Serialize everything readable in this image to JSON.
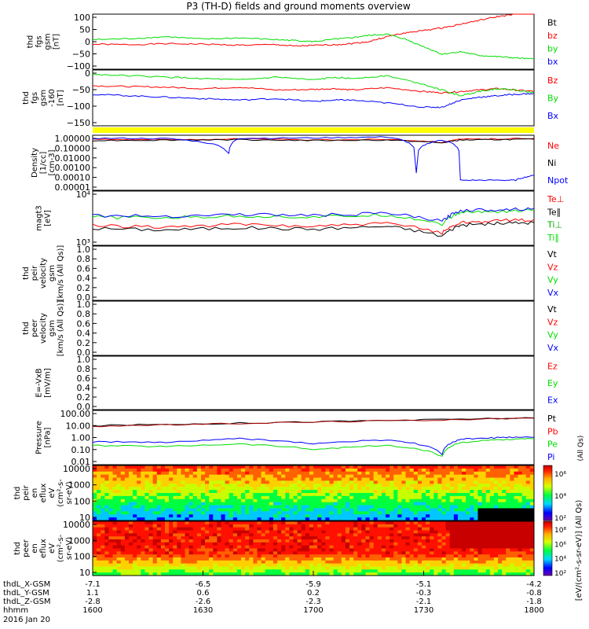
{
  "title": "P3 (TH-D) fields and ground moments overview",
  "panels": [
    {
      "id": "fgs_gsm",
      "ylabel": [
        "thd",
        "fgs",
        "gsm",
        "[nT]"
      ],
      "ticks": [
        "100",
        "50",
        "0",
        "−50",
        "−100"
      ],
      "ylim": [
        -110,
        110
      ],
      "legend": [
        {
          "text": "Bt",
          "color": "#000000"
        },
        {
          "text": "bz",
          "color": "#ff0000"
        },
        {
          "text": "by",
          "color": "#00dd00"
        },
        {
          "text": "bx",
          "color": "#0000ff"
        }
      ]
    },
    {
      "id": "fgs_gsm_sm",
      "ylabel": [
        "thd",
        "fgs",
        "gsm",
        "-160",
        "[nT]"
      ],
      "ticks": [
        "0",
        "−50",
        "−100",
        "−150"
      ],
      "ylim": [
        -175,
        20
      ],
      "legend": [
        {
          "text": "Bz",
          "color": "#ff0000"
        },
        {
          "text": "By",
          "color": "#00dd00"
        },
        {
          "text": "Bx",
          "color": "#0000ff"
        }
      ]
    },
    {
      "id": "density",
      "ylabel": [
        "Density",
        "[1/cc]",
        "[cm-3]"
      ],
      "ticks": [
        "1.00000",
        "0.10000",
        "0.01000",
        "0.00100",
        "0.00010",
        "0.00001"
      ],
      "legend": [
        {
          "text": "Ne",
          "color": "#ff0000"
        },
        {
          "text": "Ni",
          "color": "#000000"
        },
        {
          "text": "Npot",
          "color": "#0000ff"
        }
      ]
    },
    {
      "id": "temperature",
      "ylabel": [
        "magt3",
        "[eV]"
      ],
      "ticks": [
        "10⁴",
        "10³"
      ],
      "legend": [
        {
          "text": "Te⊥",
          "color": "#ff0000"
        },
        {
          "text": "Te∥",
          "color": "#000000"
        },
        {
          "text": "Ti⊥",
          "color": "#00aa00"
        },
        {
          "text": "Ti∥",
          "color": "#00dd00"
        }
      ]
    },
    {
      "id": "peir_velocity",
      "ylabel": [
        "thd",
        "peir",
        "velocity",
        "gsm",
        "[km/s (All Qs)]"
      ],
      "ticks": [
        "1.0",
        "0.8",
        "0.6",
        "0.4",
        "0.2",
        "0.0"
      ],
      "legend": [
        {
          "text": "Vt",
          "color": "#000000"
        },
        {
          "text": "Vz",
          "color": "#ff0000"
        },
        {
          "text": "Vy",
          "color": "#00dd00"
        },
        {
          "text": "Vx",
          "color": "#0000ff"
        }
      ]
    },
    {
      "id": "peer_velocity",
      "ylabel": [
        "thd",
        "peer",
        "velocity",
        "gsm",
        "[km/s (All Qs)]"
      ],
      "ticks": [
        "1.0",
        "0.8",
        "0.6",
        "0.4",
        "0.2",
        "0.0"
      ],
      "legend": [
        {
          "text": "Vt",
          "color": "#000000"
        },
        {
          "text": "Vz",
          "color": "#ff0000"
        },
        {
          "text": "Vy",
          "color": "#00dd00"
        },
        {
          "text": "Vx",
          "color": "#0000ff"
        }
      ]
    },
    {
      "id": "efield",
      "ylabel": [
        "E=-VxB",
        "[mV/m]"
      ],
      "ticks": [
        "1.0",
        "0.8",
        "0.6",
        "0.4",
        "0.2",
        "0.0"
      ],
      "legend": [
        {
          "text": "Ez",
          "color": "#ff0000"
        },
        {
          "text": "Ey",
          "color": "#00dd00"
        },
        {
          "text": "Ex",
          "color": "#0000ff"
        }
      ]
    },
    {
      "id": "pressure",
      "ylabel": [
        "Pressure",
        "[nPa]"
      ],
      "ticks": [
        "100.00",
        "10.00",
        "1.00",
        "0.10",
        "0.01"
      ],
      "legend": [
        {
          "text": "Pt",
          "color": "#000000"
        },
        {
          "text": "Pb",
          "color": "#ff0000"
        },
        {
          "text": "Pe",
          "color": "#00dd00"
        },
        {
          "text": "Pi",
          "color": "#0000ff"
        }
      ],
      "side_label": "(All Qs)"
    },
    {
      "id": "peir_eflux",
      "ylabel": [
        "thd",
        "peir",
        "en",
        "eflux",
        "eV",
        "(cm²-s-",
        "sr-eV)"
      ],
      "ticks": [
        "10000",
        "1000",
        "100",
        "10"
      ],
      "colorbar_ticks": [
        "10⁶",
        "10⁴",
        "10²"
      ]
    },
    {
      "id": "peer_eflux",
      "ylabel": [
        "thd",
        "peer",
        "en",
        "eflux",
        "eV",
        "(cm²-s-",
        "sr-eV)"
      ],
      "ticks": [
        "10000",
        "1000",
        "100",
        "10"
      ],
      "colorbar_ticks": [
        "10⁸",
        "10⁶",
        "10⁴",
        "10²"
      ]
    }
  ],
  "colorbar_label": "[eV/(cm²-s-sr-eV)] (All Qs)",
  "xaxis": {
    "rows": [
      {
        "label": "thdL_X-GSM",
        "values": [
          "-7.1",
          "-6.5",
          "-5.9",
          "-5.1",
          "-4.2"
        ]
      },
      {
        "label": "thdL_Y-GSM",
        "values": [
          "1.1",
          "0.6",
          "0.2",
          "-0.3",
          "-0.8"
        ]
      },
      {
        "label": "thdL_Z-GSM",
        "values": [
          "-2.8",
          "-2.6",
          "-2.3",
          "-2.1",
          "-1.8"
        ]
      },
      {
        "label": "hhmm",
        "values": [
          "1600",
          "1630",
          "1700",
          "1730",
          "1800"
        ]
      }
    ],
    "date": "2016 Jan 20"
  },
  "colors": {
    "red": "#ff0000",
    "green": "#00dd00",
    "blue": "#0000ff",
    "yellow_bar": "#ffff00"
  },
  "chart_data": [
    {
      "type": "line",
      "title": "thd fgs gsm [nT]",
      "x_range": [
        "16:00",
        "18:00"
      ],
      "ylim": [
        -110,
        110
      ],
      "series": [
        {
          "name": "bz",
          "x": [
            0,
            10,
            20,
            30,
            40,
            50,
            55,
            60,
            66,
            70,
            75,
            80,
            85,
            90,
            95,
            100,
            105,
            110,
            115,
            120
          ],
          "values": [
            -10,
            -12,
            -8,
            -10,
            -14,
            -12,
            -18,
            -15,
            -12,
            -8,
            0,
            20,
            35,
            45,
            55,
            70,
            85,
            100,
            110,
            115
          ]
        },
        {
          "name": "by",
          "x": [
            0,
            10,
            20,
            30,
            40,
            50,
            55,
            60,
            66,
            70,
            75,
            80,
            85,
            90,
            95,
            100,
            105,
            110,
            115,
            120
          ],
          "values": [
            8,
            12,
            20,
            10,
            15,
            8,
            5,
            0,
            10,
            15,
            25,
            30,
            10,
            -20,
            -50,
            -40,
            -55,
            -60,
            -65,
            -70
          ]
        }
      ]
    },
    {
      "type": "line",
      "title": "thd fgs gsm -160 [nT]",
      "x_range": [
        "16:00",
        "18:00"
      ],
      "ylim": [
        -175,
        20
      ],
      "series": [
        {
          "name": "Bz",
          "x": [
            0,
            10,
            20,
            30,
            40,
            50,
            60,
            66,
            70,
            80,
            90,
            95,
            100,
            105,
            110,
            115,
            120
          ],
          "values": [
            -35,
            -38,
            -40,
            -45,
            -40,
            -50,
            -48,
            -45,
            -50,
            -42,
            -55,
            -60,
            -55,
            -50,
            -45,
            -50,
            -55
          ]
        },
        {
          "name": "By",
          "x": [
            0,
            10,
            20,
            30,
            40,
            50,
            60,
            66,
            70,
            80,
            90,
            95,
            100,
            105,
            110,
            115,
            120
          ],
          "values": [
            5,
            0,
            -5,
            -10,
            -15,
            -5,
            -15,
            -5,
            -10,
            0,
            -30,
            -50,
            -70,
            -55,
            -45,
            -50,
            -60
          ]
        },
        {
          "name": "Bx",
          "x": [
            0,
            10,
            20,
            30,
            40,
            50,
            60,
            66,
            70,
            80,
            90,
            95,
            100,
            105,
            110,
            115,
            120
          ],
          "values": [
            -65,
            -70,
            -75,
            -80,
            -85,
            -80,
            -90,
            -85,
            -85,
            -95,
            -110,
            -110,
            -85,
            -75,
            -70,
            -65,
            -62
          ]
        }
      ]
    },
    {
      "type": "line",
      "title": "Density [1/cc] [cm-3]",
      "x_range": [
        "16:00",
        "18:00"
      ],
      "ylog": [
        1e-05,
        3
      ],
      "series": [
        {
          "name": "Ne",
          "x": [
            0,
            20,
            40,
            60,
            80,
            95,
            100,
            110,
            120
          ],
          "values": [
            1.2,
            1.1,
            1.3,
            1.0,
            1.2,
            0.6,
            1.2,
            1.3,
            1.5
          ]
        },
        {
          "name": "Ni",
          "x": [
            0,
            20,
            40,
            60,
            80,
            95,
            100,
            110,
            120
          ],
          "values": [
            0.9,
            1.0,
            1.1,
            0.9,
            1.0,
            0.5,
            1.0,
            1.1,
            1.2
          ]
        },
        {
          "name": "Npot",
          "x": [
            0,
            20,
            37,
            40,
            60,
            80,
            88,
            95,
            100,
            110,
            115,
            120
          ],
          "values": [
            1.5,
            1.4,
            0.05,
            1.5,
            1.6,
            2.0,
            0.0005,
            1.0,
            0.0001,
            0.0001,
            0.0001,
            0.0003
          ]
        }
      ]
    },
    {
      "type": "line",
      "title": "magt3 [eV]",
      "x_range": [
        "16:00",
        "18:00"
      ],
      "ylog": [
        500,
        30000.0
      ],
      "series": [
        {
          "name": "Te⊥",
          "x": [
            0,
            20,
            40,
            60,
            80,
            95,
            100,
            110,
            120
          ],
          "values": [
            2200,
            2000,
            2400,
            2100,
            2600,
            1300,
            2800,
            3200,
            3500
          ]
        },
        {
          "name": "Te∥",
          "x": [
            0,
            20,
            40,
            60,
            80,
            95,
            100,
            110,
            120
          ],
          "values": [
            1800,
            1600,
            1900,
            1700,
            2100,
            1000,
            2300,
            2600,
            2800
          ]
        },
        {
          "name": "Ti∥",
          "x": [
            0,
            20,
            40,
            60,
            80,
            95,
            100,
            110,
            120
          ],
          "values": [
            4200,
            4000,
            4600,
            4200,
            5000,
            2500,
            6000,
            6500,
            7000
          ]
        },
        {
          "name": "Ti⊥",
          "x": [
            0,
            20,
            40,
            60,
            80,
            95,
            100,
            110,
            120
          ],
          "values": [
            4800,
            4500,
            5200,
            4800,
            5600,
            3000,
            7000,
            7500,
            8000
          ]
        }
      ]
    },
    {
      "type": "line",
      "title": "Pressure [nPa]",
      "x_range": [
        "16:00",
        "18:00"
      ],
      "ylog": [
        0.01,
        150
      ],
      "series": [
        {
          "name": "Pt",
          "x": [
            0,
            30,
            60,
            90,
            120
          ],
          "values": [
            10,
            14,
            20,
            28,
            40
          ]
        },
        {
          "name": "Pb",
          "x": [
            0,
            30,
            60,
            90,
            120
          ],
          "values": [
            9,
            13,
            19,
            27,
            38
          ]
        },
        {
          "name": "Pe",
          "x": [
            0,
            20,
            40,
            60,
            80,
            95,
            100,
            110,
            120
          ],
          "values": [
            0.3,
            0.25,
            0.4,
            0.15,
            0.3,
            0.04,
            0.5,
            0.8,
            1.0
          ]
        },
        {
          "name": "Pi",
          "x": [
            0,
            20,
            40,
            60,
            80,
            95,
            100,
            110,
            120
          ],
          "values": [
            0.6,
            0.5,
            1.0,
            0.4,
            0.8,
            0.06,
            0.9,
            1.2,
            1.3
          ]
        }
      ]
    },
    {
      "type": "heatmap",
      "title": "thd peir en eflux",
      "x_range": [
        "16:00",
        "18:00"
      ],
      "y_range_eV": [
        5,
        25000
      ],
      "note": "ion energy flux spectrogram"
    },
    {
      "type": "heatmap",
      "title": "thd peer en eflux",
      "x_range": [
        "16:00",
        "18:00"
      ],
      "y_range_eV": [
        5,
        25000
      ],
      "note": "electron energy flux spectrogram"
    }
  ]
}
